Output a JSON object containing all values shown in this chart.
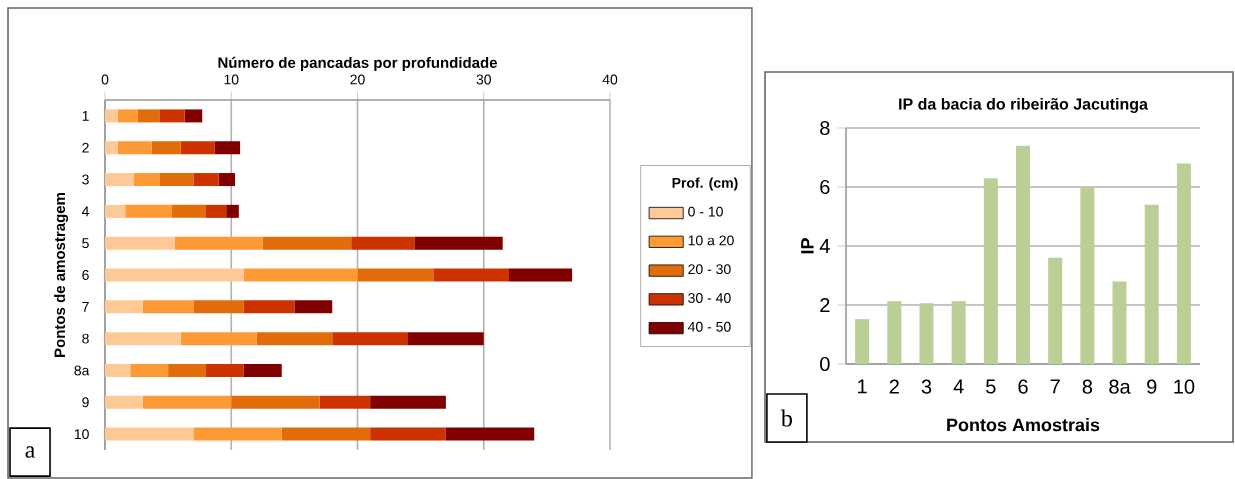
{
  "chart_data": [
    {
      "type": "bar",
      "orientation": "horizontal",
      "stacked": true,
      "xlabel": "Número de pancadas por profundidade",
      "ylabel": "Pontos de amostragem",
      "legend_title": "Prof. (cm)",
      "legend": "right",
      "grid": "x",
      "categories": [
        "1",
        "2",
        "3",
        "4",
        "5",
        "6",
        "7",
        "8",
        "8a",
        "9",
        "10"
      ],
      "xlim": [
        0,
        40
      ],
      "xticks": [
        0,
        10,
        20,
        30,
        40
      ],
      "series": [
        {
          "name": "0 - 10",
          "color": "#fdc997",
          "values": [
            1.0,
            1.0,
            2.3,
            1.6,
            5.5,
            11,
            3,
            6,
            2,
            3,
            7
          ]
        },
        {
          "name": "10 a 20",
          "color": "#fd9a35",
          "values": [
            1.6,
            2.7,
            2.0,
            3.7,
            7,
            9,
            4,
            6,
            3,
            7,
            7
          ]
        },
        {
          "name": "20 - 30",
          "color": "#e36c0a",
          "values": [
            1.7,
            2.3,
            2.7,
            2.7,
            7,
            6,
            4,
            6,
            3,
            7,
            7
          ]
        },
        {
          "name": "30 - 40",
          "color": "#cc3300",
          "values": [
            2.0,
            2.7,
            2.0,
            1.6,
            5,
            6,
            4,
            6,
            3,
            4,
            6
          ]
        },
        {
          "name": "40 - 50",
          "color": "#800000",
          "values": [
            1.4,
            2.0,
            1.3,
            1.0,
            7,
            5,
            3,
            6,
            3,
            6,
            7
          ]
        }
      ],
      "annotations": [
        "a"
      ]
    },
    {
      "type": "bar",
      "title": "IP da bacia do ribeirão Jacutinga",
      "xlabel": "Pontos Amostrais",
      "ylabel": "IP",
      "grid": "y",
      "categories": [
        "1",
        "2",
        "3",
        "4",
        "5",
        "6",
        "7",
        "8",
        "8a",
        "9",
        "10"
      ],
      "values": [
        1.52,
        2.13,
        2.06,
        2.13,
        6.3,
        7.4,
        3.6,
        6.0,
        2.8,
        5.4,
        6.8
      ],
      "color": "#b9cf96",
      "ylim": [
        0,
        8
      ],
      "yticks": [
        0,
        2,
        4,
        6,
        8
      ],
      "annotations": [
        "b"
      ]
    }
  ]
}
